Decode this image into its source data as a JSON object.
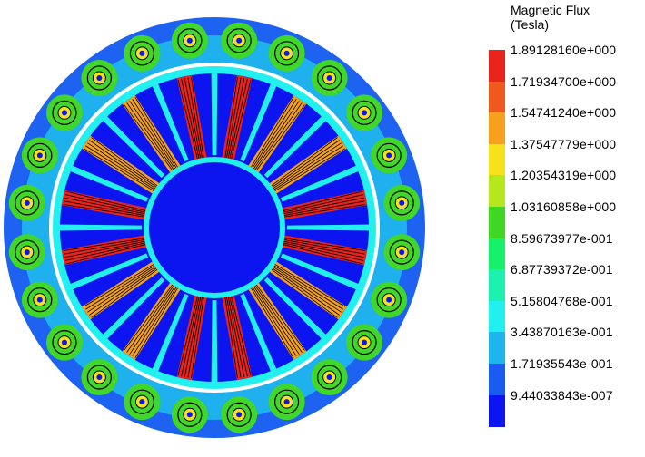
{
  "legend": {
    "title_line1": "Magnetic Flux",
    "title_line2": " (Tesla)",
    "entries": [
      {
        "value": "1.89128160e+000",
        "color": "#e8241c"
      },
      {
        "value": "1.71934700e+000",
        "color": "#ee5a1e"
      },
      {
        "value": "1.54741240e+000",
        "color": "#f5a11e"
      },
      {
        "value": "1.37547779e+000",
        "color": "#f6e21c"
      },
      {
        "value": "1.20354319e+000",
        "color": "#b6e61e"
      },
      {
        "value": "1.03160858e+000",
        "color": "#3fd624"
      },
      {
        "value": "8.59673977e-001",
        "color": "#19f06a"
      },
      {
        "value": "6.87739372e-001",
        "color": "#1ef0b0"
      },
      {
        "value": "5.15804768e-001",
        "color": "#22f0ee"
      },
      {
        "value": "3.43870163e-001",
        "color": "#1eb4ee"
      },
      {
        "value": "1.71935543e-001",
        "color": "#1a5cf0"
      },
      {
        "value": "9.44033843e-007",
        "color": "#0c14f0"
      }
    ]
  },
  "colors": {
    "stator_outer": "#1d62f0",
    "stator_mid": "#1fb0ee",
    "tooth_tip": "#40d62a",
    "slot_fill": "#ffffff",
    "rotor_core": "#0c14f0",
    "rotor_bridge": "#22f0ee",
    "pole_high": "#e8241c",
    "pole_mid": "#f5a11e",
    "flux_line": "#000000"
  }
}
